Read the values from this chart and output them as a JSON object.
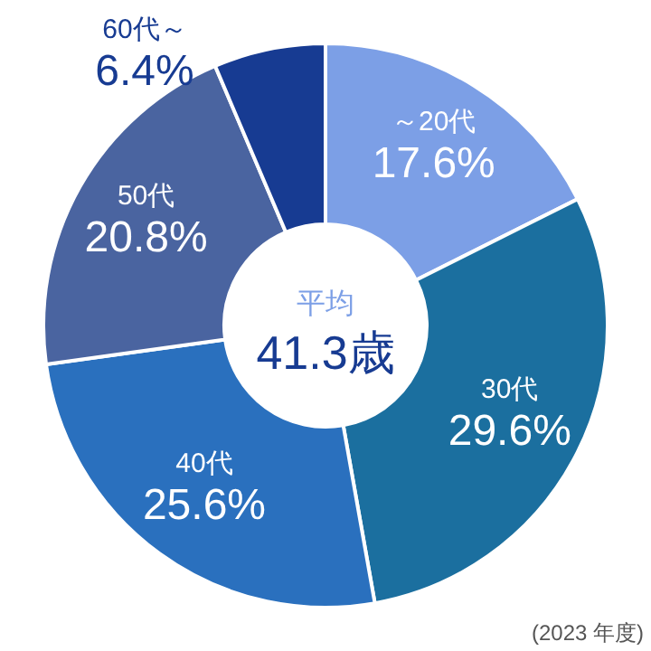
{
  "chart_data": {
    "type": "donut",
    "categories": [
      "～20代",
      "30代",
      "40代",
      "50代",
      "60代～"
    ],
    "values": [
      17.6,
      29.6,
      25.6,
      20.8,
      6.4
    ],
    "colors": [
      "#7c9fe6",
      "#1b6f9f",
      "#2a70be",
      "#4a64a0",
      "#173b92"
    ],
    "value_labels": [
      "17.6%",
      "29.6%",
      "25.6%",
      "20.8%",
      "6.4%"
    ],
    "annotations": [
      "平均",
      "41.3歳",
      "(2023 年度)"
    ]
  }
}
